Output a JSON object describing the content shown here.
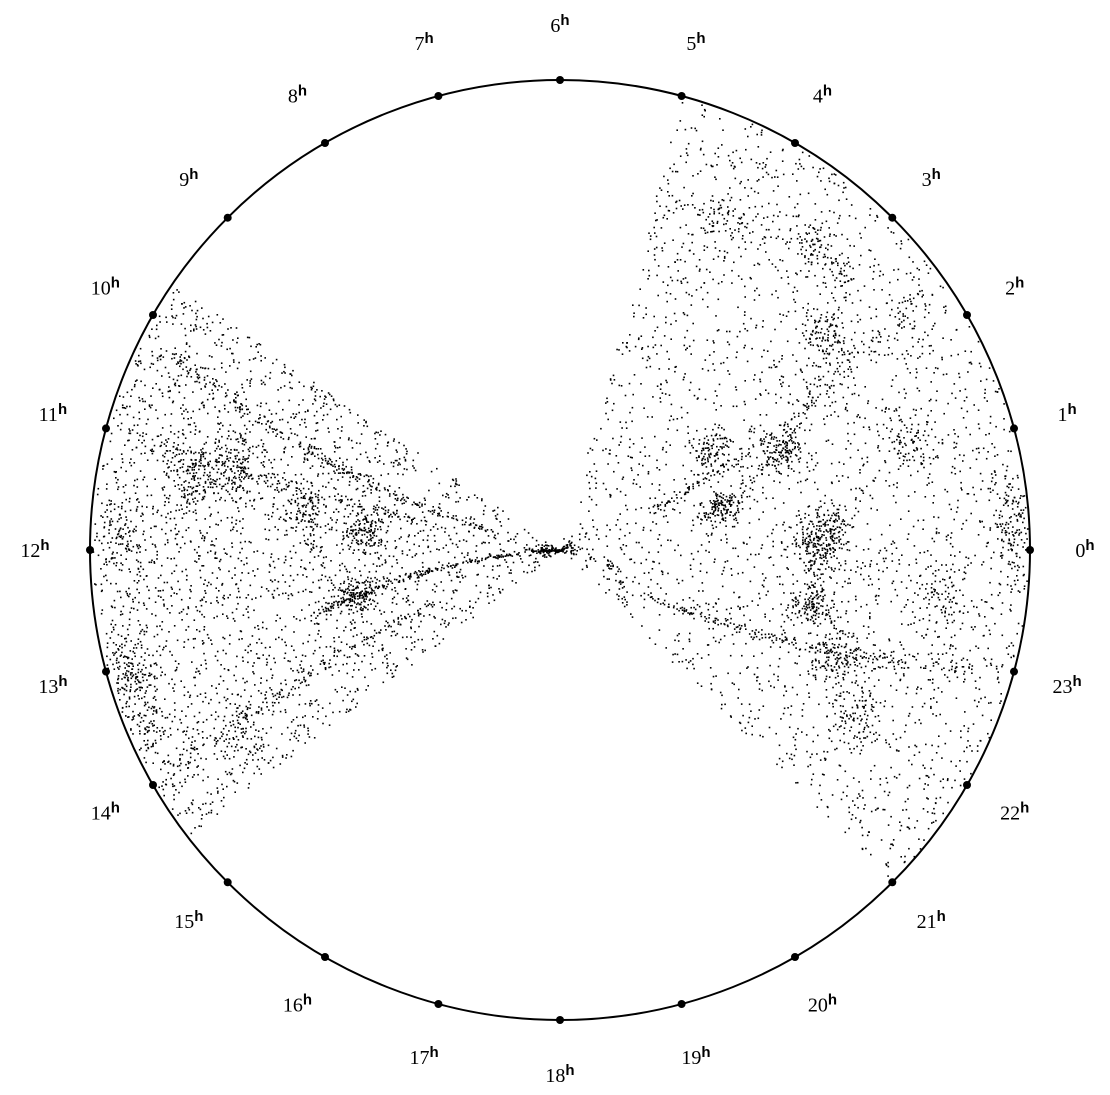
{
  "chart_data": {
    "type": "scatter",
    "projection": "polar",
    "axis": "right ascension (hours, counter-clockwise, 0h at right)",
    "tick_labels": [
      "0",
      "1",
      "2",
      "3",
      "4",
      "5",
      "6",
      "7",
      "8",
      "9",
      "10",
      "11",
      "12",
      "13",
      "14",
      "15",
      "16",
      "17",
      "18",
      "19",
      "20",
      "21",
      "22",
      "23"
    ],
    "tick_unit": "h",
    "point_color": "#000000",
    "grid": false,
    "survey_wedges": [
      {
        "name": "",
        "ra_range_h": [
          21.0,
          5.0
        ],
        "radius_range": [
          0.0,
          1.0
        ]
      },
      {
        "name": "",
        "ra_range_h": [
          9.7,
          14.5
        ],
        "radius_range": [
          0.0,
          1.0
        ]
      }
    ],
    "clusters": [
      {
        "ra_h": 0.05,
        "r": 0.55,
        "n": 180
      },
      {
        "ra_h": 0.2,
        "r": 0.97,
        "n": 120
      },
      {
        "ra_h": 1.2,
        "r": 0.78,
        "n": 80
      },
      {
        "ra_h": 1.6,
        "r": 0.52,
        "n": 110
      },
      {
        "ra_h": 2.6,
        "r": 0.72,
        "n": 90
      },
      {
        "ra_h": 3.3,
        "r": 0.84,
        "n": 80
      },
      {
        "ra_h": 2.2,
        "r": 0.38,
        "n": 90
      },
      {
        "ra_h": 1.0,
        "r": 0.36,
        "n": 120
      },
      {
        "ra_h": 0.4,
        "r": 0.58,
        "n": 80
      },
      {
        "ra_h": 23.2,
        "r": 0.55,
        "n": 140
      },
      {
        "ra_h": 22.6,
        "r": 0.63,
        "n": 120
      },
      {
        "ra_h": 22.0,
        "r": 0.72,
        "n": 90
      },
      {
        "ra_h": 23.5,
        "r": 0.82,
        "n": 70
      },
      {
        "ra_h": 4.2,
        "r": 0.78,
        "n": 50
      },
      {
        "ra_h": 11.0,
        "r": 0.72,
        "n": 130
      },
      {
        "ra_h": 11.3,
        "r": 0.8,
        "n": 110
      },
      {
        "ra_h": 11.6,
        "r": 0.42,
        "n": 130
      },
      {
        "ra_h": 12.8,
        "r": 0.44,
        "n": 120
      },
      {
        "ra_h": 11.9,
        "r": 0.93,
        "n": 90
      },
      {
        "ra_h": 13.0,
        "r": 0.95,
        "n": 130
      },
      {
        "ra_h": 13.5,
        "r": 0.97,
        "n": 80
      },
      {
        "ra_h": 14.1,
        "r": 0.78,
        "n": 60
      },
      {
        "ra_h": 11.4,
        "r": 0.55,
        "n": 80
      },
      {
        "ra_h": 12.0,
        "r": 0.03,
        "n": 80
      }
    ]
  }
}
